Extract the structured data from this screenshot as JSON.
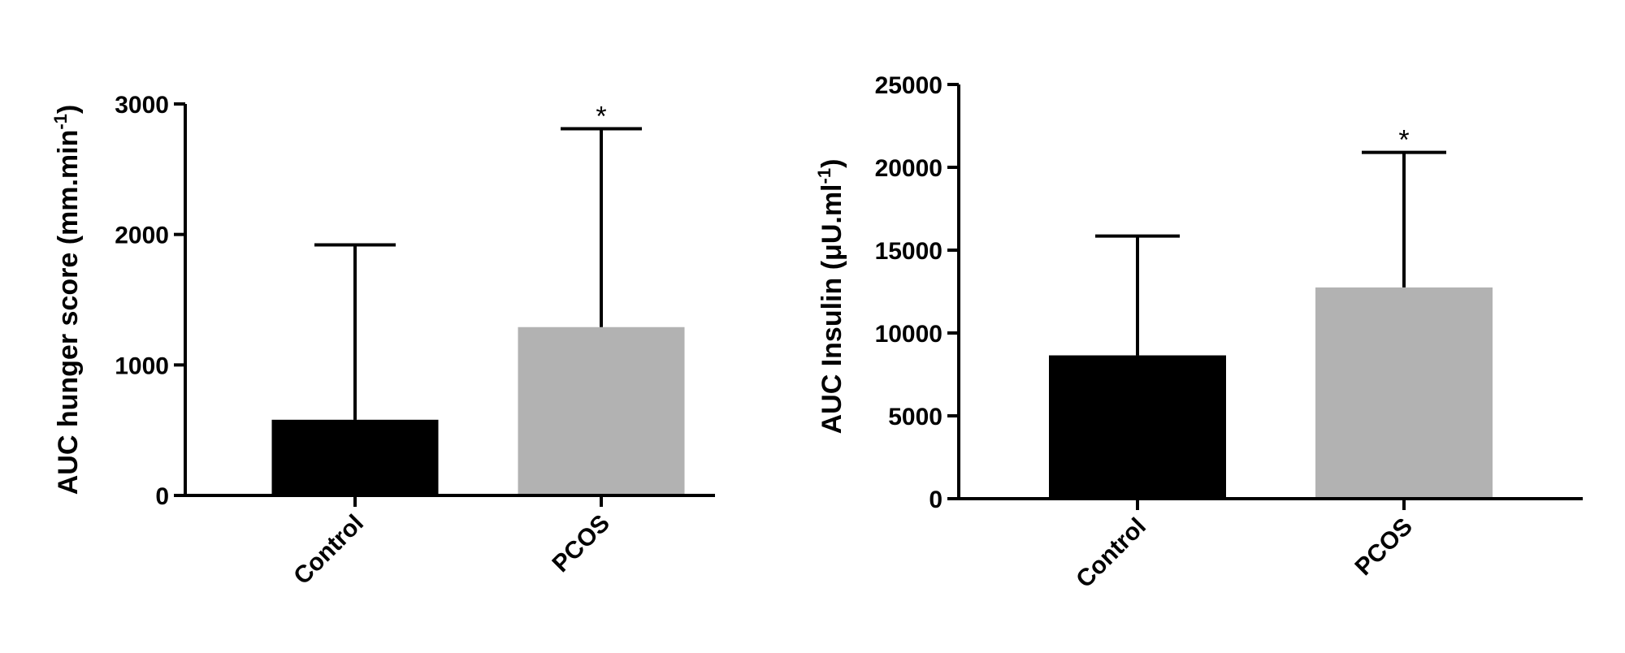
{
  "chart_data": [
    {
      "type": "bar",
      "categories": [
        "Control",
        "PCOS"
      ],
      "values": [
        580,
        1290
      ],
      "error_upper": [
        1920,
        2810
      ],
      "significance": [
        "",
        "*"
      ],
      "ylabel_main": "AUC hunger score (mm.min",
      "ylabel_sup": "-1",
      "ylabel_end": ")",
      "ylim": [
        0,
        3000
      ],
      "yticks": [
        0,
        1000,
        2000,
        3000
      ],
      "colors": [
        "#000000",
        "#b2b2b2"
      ]
    },
    {
      "type": "bar",
      "categories": [
        "Control",
        "PCOS"
      ],
      "values": [
        8650,
        12750
      ],
      "error_upper": [
        15850,
        20900
      ],
      "significance": [
        "",
        "*"
      ],
      "ylabel_main": "AUC Insulin (μU.ml",
      "ylabel_sup": "-1",
      "ylabel_end": ")",
      "ylim": [
        0,
        25000
      ],
      "yticks": [
        0,
        5000,
        10000,
        15000,
        20000,
        25000
      ],
      "colors": [
        "#000000",
        "#b2b2b2"
      ]
    }
  ]
}
